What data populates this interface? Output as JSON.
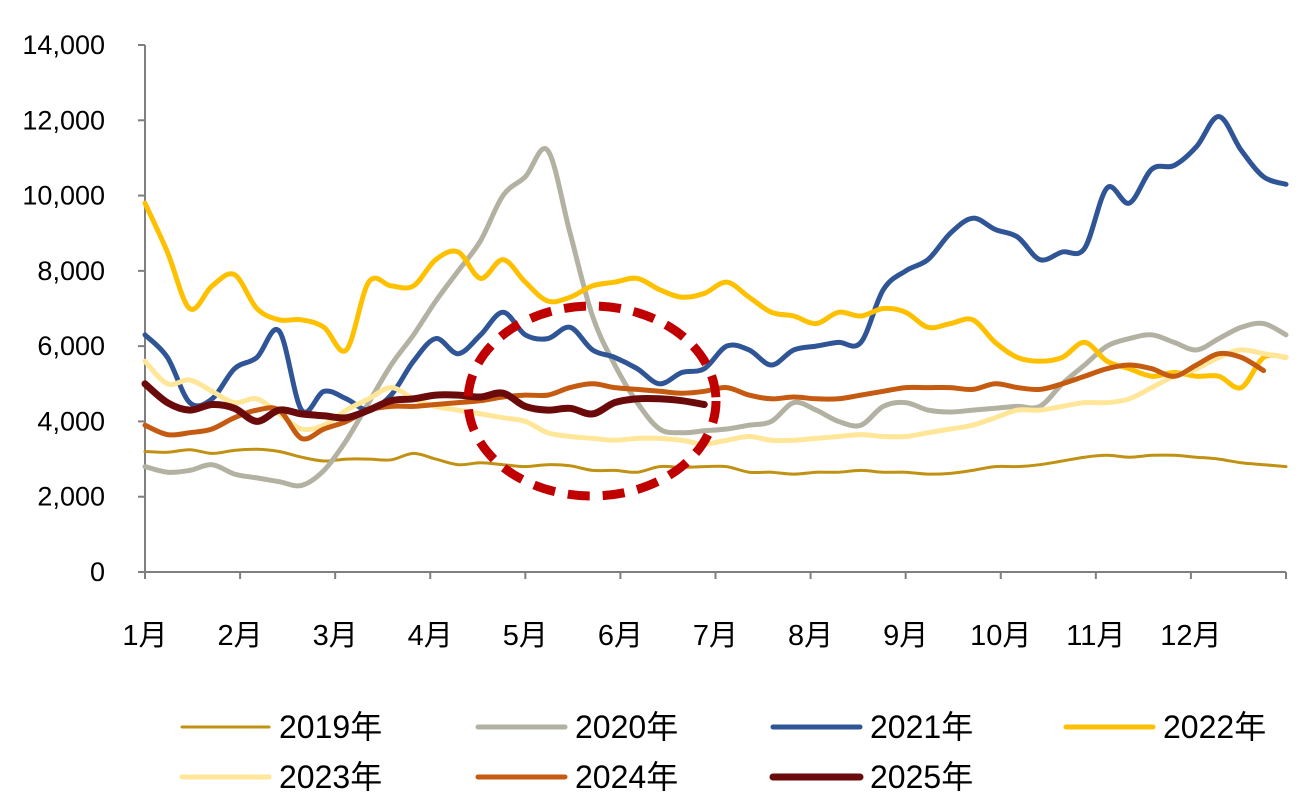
{
  "chart_data": {
    "type": "line",
    "title": "",
    "xlabel": "",
    "ylabel": "",
    "ylim": [
      0,
      14000
    ],
    "yticks": [
      0,
      2000,
      4000,
      6000,
      8000,
      10000,
      12000,
      14000
    ],
    "ytick_labels": [
      "0",
      "2,000",
      "4,000",
      "6,000",
      "8,000",
      "10,000",
      "12,000",
      "14,000"
    ],
    "categories": [
      "1月",
      "2月",
      "3月",
      "4月",
      "5月",
      "6月",
      "7月",
      "8月",
      "9月",
      "10月",
      "11月",
      "12月"
    ],
    "x_unit": "week",
    "x_range": [
      1,
      52
    ],
    "grid": false,
    "legend_position": "bottom",
    "annotation": "red dashed ellipse highlighting 2025 data (May–June)",
    "series": [
      {
        "name": "2019年",
        "color": "#C09112",
        "width": 3,
        "x": [
          1,
          2,
          3,
          4,
          5,
          6,
          7,
          8,
          9,
          10,
          11,
          12,
          13,
          14,
          15,
          16,
          17,
          18,
          19,
          20,
          21,
          22,
          23,
          24,
          25,
          26,
          27,
          28,
          29,
          30,
          31,
          32,
          33,
          34,
          35,
          36,
          37,
          38,
          39,
          40,
          41,
          42,
          43,
          44,
          45,
          46,
          47,
          48,
          49,
          50,
          51,
          52
        ],
        "y": [
          3200,
          3180,
          3250,
          3150,
          3230,
          3260,
          3200,
          3050,
          2950,
          3000,
          3000,
          2980,
          3150,
          3000,
          2850,
          2900,
          2850,
          2800,
          2850,
          2820,
          2700,
          2700,
          2650,
          2800,
          2780,
          2800,
          2800,
          2650,
          2650,
          2600,
          2650,
          2650,
          2700,
          2650,
          2650,
          2600,
          2620,
          2700,
          2800,
          2800,
          2850,
          2950,
          3050,
          3100,
          3050,
          3100,
          3100,
          3050,
          3000,
          2900,
          2850,
          2800
        ]
      },
      {
        "name": "2020年",
        "color": "#B3B1A1",
        "width": 5,
        "x": [
          1,
          2,
          3,
          4,
          5,
          6,
          7,
          8,
          9,
          10,
          11,
          12,
          13,
          14,
          15,
          16,
          17,
          18,
          19,
          20,
          21,
          22,
          23,
          24,
          25,
          26,
          27,
          28,
          29,
          30,
          31,
          32,
          33,
          34,
          35,
          36,
          37,
          38,
          39,
          40,
          41,
          42,
          43,
          44,
          45,
          46,
          47,
          48,
          49,
          50,
          51,
          52
        ],
        "y": [
          2800,
          2650,
          2700,
          2850,
          2600,
          2500,
          2400,
          2300,
          2700,
          3500,
          4500,
          5500,
          6300,
          7200,
          8000,
          8800,
          10000,
          10500,
          11200,
          9000,
          6800,
          5500,
          4500,
          3800,
          3700,
          3750,
          3800,
          3900,
          4000,
          4500,
          4300,
          4000,
          3900,
          4400,
          4500,
          4300,
          4250,
          4300,
          4350,
          4400,
          4400,
          5000,
          5500,
          6000,
          6200,
          6300,
          6100,
          5900,
          6200,
          6500,
          6600,
          6300
        ]
      },
      {
        "name": "2021年",
        "color": "#2F5597",
        "width": 5,
        "x": [
          1,
          2,
          3,
          4,
          5,
          6,
          7,
          8,
          9,
          10,
          11,
          12,
          13,
          14,
          15,
          16,
          17,
          18,
          19,
          20,
          21,
          22,
          23,
          24,
          25,
          26,
          27,
          28,
          29,
          30,
          31,
          32,
          33,
          34,
          35,
          36,
          37,
          38,
          39,
          40,
          41,
          42,
          43,
          44,
          45,
          46,
          47,
          48,
          49,
          50,
          51,
          52
        ],
        "y": [
          6300,
          5700,
          4500,
          4600,
          5400,
          5700,
          6400,
          4300,
          4800,
          4600,
          4300,
          4700,
          5600,
          6200,
          5800,
          6300,
          6900,
          6300,
          6200,
          6500,
          5900,
          5700,
          5400,
          5000,
          5300,
          5400,
          6000,
          5900,
          5500,
          5900,
          6000,
          6100,
          6100,
          7500,
          8000,
          8300,
          9000,
          9400,
          9100,
          8900,
          8300,
          8500,
          8600,
          10200,
          9800,
          10700,
          10800,
          11300,
          12100,
          11200,
          10500,
          10300
        ]
      },
      {
        "name": "2022年",
        "color": "#FFC000",
        "width": 5,
        "x": [
          1,
          2,
          3,
          4,
          5,
          6,
          7,
          8,
          9,
          10,
          11,
          12,
          13,
          14,
          15,
          16,
          17,
          18,
          19,
          20,
          21,
          22,
          23,
          24,
          25,
          26,
          27,
          28,
          29,
          30,
          31,
          32,
          33,
          34,
          35,
          36,
          37,
          38,
          39,
          40,
          41,
          42,
          43,
          44,
          45,
          46,
          47,
          48,
          49,
          50,
          51,
          52
        ],
        "y": [
          9800,
          8500,
          7000,
          7600,
          7900,
          7000,
          6700,
          6700,
          6500,
          5900,
          7700,
          7600,
          7600,
          8300,
          8500,
          7800,
          8300,
          7700,
          7200,
          7300,
          7600,
          7700,
          7800,
          7500,
          7300,
          7400,
          7700,
          7300,
          6900,
          6800,
          6600,
          6900,
          6800,
          7000,
          6900,
          6500,
          6600,
          6700,
          6100,
          5700,
          5600,
          5700,
          6100,
          5600,
          5400,
          5200,
          5300,
          5200,
          5200,
          4900,
          5700,
          5700
        ]
      },
      {
        "name": "2023年",
        "color": "#FFE699",
        "width": 5,
        "x": [
          1,
          2,
          3,
          4,
          5,
          6,
          7,
          8,
          9,
          10,
          11,
          12,
          13,
          14,
          15,
          16,
          17,
          18,
          19,
          20,
          21,
          22,
          23,
          24,
          25,
          26,
          27,
          28,
          29,
          30,
          31,
          32,
          33,
          34,
          35,
          36,
          37,
          38,
          39,
          40,
          41,
          42,
          43,
          44,
          45,
          46,
          47,
          48,
          49,
          50,
          51,
          52
        ],
        "y": [
          5600,
          5000,
          5100,
          4800,
          4500,
          4600,
          4200,
          3800,
          3900,
          4300,
          4600,
          4900,
          4600,
          4400,
          4300,
          4200,
          4100,
          4000,
          3700,
          3600,
          3550,
          3500,
          3550,
          3550,
          3500,
          3400,
          3500,
          3600,
          3500,
          3500,
          3550,
          3600,
          3650,
          3600,
          3600,
          3700,
          3800,
          3900,
          4100,
          4300,
          4300,
          4400,
          4500,
          4500,
          4600,
          4900,
          5200,
          5400,
          5700,
          5900,
          5800,
          5700
        ]
      },
      {
        "name": "2024年",
        "color": "#C55A11",
        "width": 5,
        "x": [
          1,
          2,
          3,
          4,
          5,
          6,
          7,
          8,
          9,
          10,
          11,
          12,
          13,
          14,
          15,
          16,
          17,
          18,
          19,
          20,
          21,
          22,
          23,
          24,
          25,
          26,
          27,
          28,
          29,
          30,
          31,
          32,
          33,
          34,
          35,
          36,
          37,
          38,
          39,
          40,
          41,
          42,
          43,
          44,
          45,
          46,
          47,
          48,
          49,
          50,
          51
        ],
        "y": [
          3900,
          3650,
          3700,
          3800,
          4100,
          4300,
          4300,
          3550,
          3800,
          4000,
          4300,
          4400,
          4400,
          4450,
          4500,
          4550,
          4650,
          4700,
          4700,
          4900,
          5000,
          4900,
          4850,
          4800,
          4750,
          4800,
          4900,
          4700,
          4600,
          4650,
          4600,
          4600,
          4700,
          4800,
          4900,
          4900,
          4900,
          4850,
          5000,
          4900,
          4850,
          5000,
          5200,
          5400,
          5500,
          5400,
          5200,
          5500,
          5800,
          5700,
          5350
        ]
      },
      {
        "name": "2025年",
        "color": "#6B0A0A",
        "width": 7,
        "x": [
          1,
          2,
          3,
          4,
          5,
          6,
          7,
          8,
          9,
          10,
          11,
          12,
          13,
          14,
          15,
          16,
          17,
          18,
          19,
          20,
          21,
          22,
          23,
          24,
          25,
          26
        ],
        "y": [
          5000,
          4500,
          4300,
          4450,
          4350,
          4000,
          4300,
          4200,
          4150,
          4100,
          4300,
          4550,
          4600,
          4700,
          4700,
          4650,
          4750,
          4400,
          4300,
          4350,
          4200,
          4500,
          4600,
          4600,
          4550,
          4450
        ]
      }
    ]
  }
}
